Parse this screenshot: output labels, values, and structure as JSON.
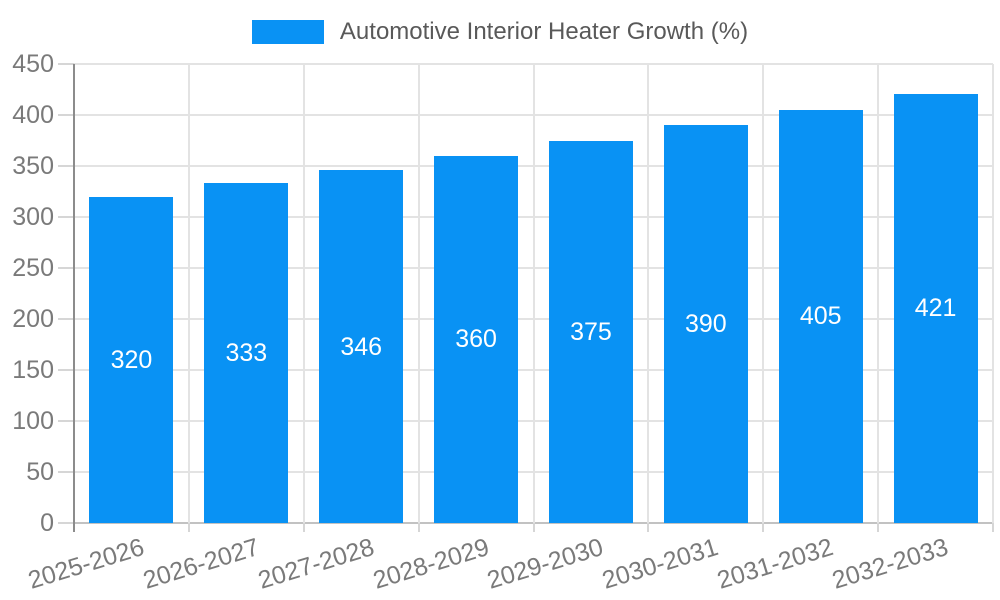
{
  "legend": {
    "label": "Automotive Interior Heater Growth (%)"
  },
  "chart_data": {
    "type": "bar",
    "title": "Automotive Interior Heater Growth (%)",
    "categories": [
      "2025-2026",
      "2026-2027",
      "2027-2028",
      "2028-2029",
      "2029-2030",
      "2030-2031",
      "2031-2032",
      "2032-2033"
    ],
    "values": [
      320,
      333,
      346,
      360,
      375,
      390,
      405,
      421
    ],
    "xlabel": "",
    "ylabel": "",
    "ylim": [
      0,
      450
    ],
    "ytick_step": 50,
    "yticks": [
      0,
      50,
      100,
      150,
      200,
      250,
      300,
      350,
      400,
      450
    ],
    "grid": true,
    "legend_position": "top",
    "value_labels": "inside-middle"
  },
  "colors": {
    "bar": "#0992f4",
    "value_label": "#ffffff",
    "grid_line": "#e3e3e3",
    "axis_line": "#8c8c8c",
    "bottom_axis_line": "#c2c2c2",
    "tick_mark": "#d6d6d6",
    "tick_label": "#7a7a7a",
    "legend_text": "#595959",
    "background": "#ffffff"
  }
}
